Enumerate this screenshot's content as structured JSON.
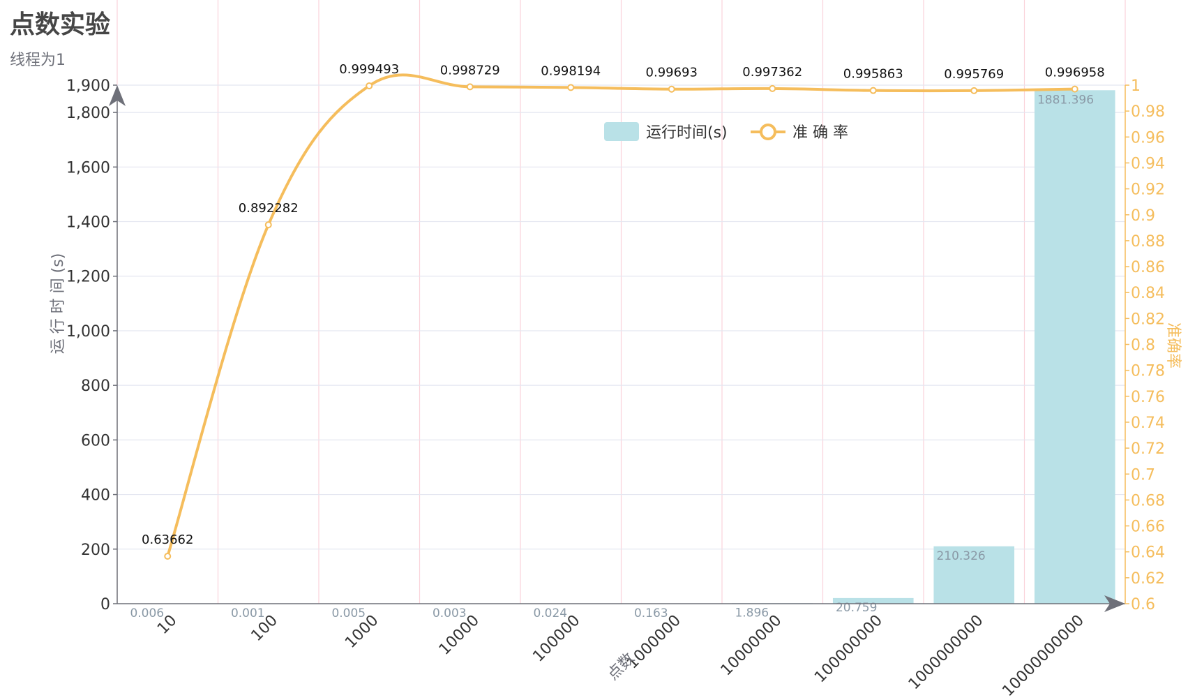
{
  "title": "点数实验",
  "subtitle": "线程为1",
  "chart_data": {
    "type": "bar+line",
    "categories": [
      "10",
      "100",
      "1000",
      "10000",
      "100000",
      "1000000",
      "10000000",
      "100000000",
      "1000000000",
      "10000000000"
    ],
    "series": [
      {
        "name": "运行时间(s)",
        "type": "bar",
        "axis": "left",
        "values": [
          0.006,
          0.001,
          0.005,
          0.003,
          0.024,
          0.163,
          1.896,
          20.759,
          210.326,
          1881.396
        ],
        "labels": [
          "0.006",
          "0.001",
          "0.005",
          "0.003",
          "0.024",
          "0.163",
          "1.896",
          "20.759",
          "210.326",
          "1881.396"
        ],
        "color": "#b9e1e7"
      },
      {
        "name": "准 确 率",
        "type": "line",
        "axis": "right",
        "smooth": true,
        "values": [
          0.63662,
          0.892282,
          0.999493,
          0.998729,
          0.998194,
          0.99693,
          0.997362,
          0.995863,
          0.995769,
          0.996958
        ],
        "labels": [
          "0.63662",
          "0.892282",
          "0.999493",
          "0.998729",
          "0.998194",
          "0.99693",
          "0.997362",
          "0.995863",
          "0.995769",
          "0.996958"
        ],
        "color": "#f5bd5c"
      }
    ],
    "xlabel": "点数",
    "ylabel_left": "运 行 时 间 (s)",
    "ylabel_right": "准确率",
    "ylim_left": [
      0,
      1900
    ],
    "yticks_left": [
      "0",
      "200",
      "400",
      "600",
      "800",
      "1,000",
      "1,200",
      "1,400",
      "1,600",
      "1,800",
      "1,900"
    ],
    "ylim_right": [
      0.6,
      1.0
    ],
    "yticks_right": [
      "0.6",
      "0.62",
      "0.64",
      "0.66",
      "0.68",
      "0.7",
      "0.72",
      "0.74",
      "0.76",
      "0.78",
      "0.8",
      "0.82",
      "0.84",
      "0.86",
      "0.88",
      "0.9",
      "0.92",
      "0.94",
      "0.96",
      "0.98",
      "1"
    ],
    "grid": true,
    "legend_position": "top-center"
  }
}
